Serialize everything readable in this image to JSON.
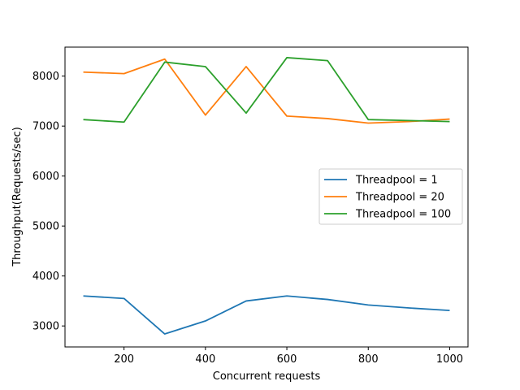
{
  "chart_data": {
    "type": "line",
    "title": "",
    "xlabel": "Concurrent requests",
    "ylabel": "Throughput(Requests/sec)",
    "x": [
      100,
      200,
      300,
      400,
      500,
      600,
      700,
      800,
      900,
      1000
    ],
    "xlim": [
      55,
      1045
    ],
    "ylim": [
      2580,
      8580
    ],
    "xticks": [
      200,
      400,
      600,
      800,
      1000
    ],
    "yticks": [
      3000,
      4000,
      5000,
      6000,
      7000,
      8000
    ],
    "grid": false,
    "legend_position": "center-right",
    "series": [
      {
        "name": "Threadpool = 1",
        "color": "#1f77b4",
        "values": [
          3600,
          3550,
          2840,
          3100,
          3500,
          3600,
          3530,
          3420,
          3360,
          3310
        ]
      },
      {
        "name": "Threadpool = 20",
        "color": "#ff7f0e",
        "values": [
          8080,
          8050,
          8340,
          7220,
          8190,
          7200,
          7150,
          7060,
          7090,
          7140
        ]
      },
      {
        "name": "Threadpool = 100",
        "color": "#2ca02c",
        "values": [
          7130,
          7080,
          8280,
          8190,
          7260,
          8370,
          8310,
          7130,
          7110,
          7090
        ]
      }
    ]
  }
}
